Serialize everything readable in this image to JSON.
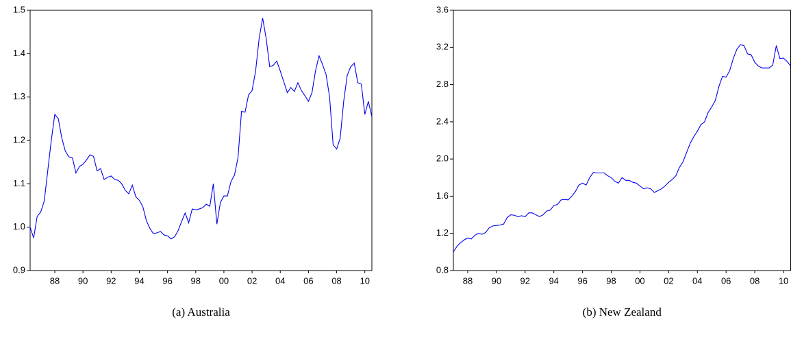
{
  "chart_data": [
    {
      "type": "line",
      "caption": "(a) Australia",
      "x": [
        1986.75,
        1987,
        1987.25,
        1987.5,
        1987.75,
        1988,
        1988.25,
        1988.5,
        1988.75,
        1989,
        1989.25,
        1989.5,
        1989.75,
        1990,
        1990.25,
        1990.5,
        1990.75,
        1991,
        1991.25,
        1991.5,
        1991.75,
        1992,
        1992.25,
        1992.5,
        1992.75,
        1993,
        1993.25,
        1993.5,
        1993.75,
        1994,
        1994.25,
        1994.5,
        1994.75,
        1995,
        1995.25,
        1995.5,
        1995.75,
        1996,
        1996.25,
        1996.5,
        1996.75,
        1997,
        1997.25,
        1997.5,
        1997.75,
        1998,
        1998.25,
        1998.5,
        1998.75,
        1999,
        1999.25,
        1999.5,
        1999.75,
        2000,
        2000.25,
        2000.5,
        2000.75,
        2001,
        2001.25,
        2001.5,
        2001.75,
        2002,
        2002.25,
        2002.5,
        2002.75,
        2003,
        2003.25,
        2003.5,
        2003.75,
        2004,
        2004.25,
        2004.5,
        2004.75,
        2005,
        2005.25,
        2005.5,
        2005.75,
        2006,
        2006.25,
        2006.5,
        2006.75,
        2007,
        2007.25,
        2007.5,
        2007.75,
        2008,
        2008.25,
        2008.5,
        2008.75,
        2009,
        2009.25,
        2009.5,
        2009.75,
        2010,
        2010.25,
        2010.5,
        2010.75,
        2011
      ],
      "series": [
        {
          "color": "#0000ee",
          "values": [
            1.0,
            0.975,
            1.025,
            1.035,
            1.06,
            1.13,
            1.2,
            1.26,
            1.25,
            1.205,
            1.175,
            1.162,
            1.16,
            1.125,
            1.14,
            1.145,
            1.155,
            1.167,
            1.163,
            1.13,
            1.135,
            1.11,
            1.115,
            1.118,
            1.11,
            1.108,
            1.1,
            1.085,
            1.077,
            1.097,
            1.07,
            1.062,
            1.047,
            1.015,
            0.997,
            0.985,
            0.987,
            0.99,
            0.982,
            0.98,
            0.973,
            0.978,
            0.992,
            1.013,
            1.033,
            1.01,
            1.042,
            1.04,
            1.042,
            1.045,
            1.053,
            1.048,
            1.1,
            1.007,
            1.057,
            1.072,
            1.072,
            1.105,
            1.12,
            1.16,
            1.267,
            1.265,
            1.305,
            1.315,
            1.36,
            1.435,
            1.482,
            1.435,
            1.37,
            1.373,
            1.383,
            1.36,
            1.335,
            1.31,
            1.322,
            1.313,
            1.333,
            1.315,
            1.303,
            1.29,
            1.31,
            1.36,
            1.395,
            1.375,
            1.352,
            1.3,
            1.19,
            1.18,
            1.205,
            1.29,
            1.35,
            1.37,
            1.378,
            1.333,
            1.33,
            1.26,
            1.29,
            1.255
          ]
        }
      ],
      "xlim": [
        1986.75,
        2011
      ],
      "xticks": [
        {
          "value": 1988.5,
          "label": "88"
        },
        {
          "value": 1990.5,
          "label": "90"
        },
        {
          "value": 1992.5,
          "label": "92"
        },
        {
          "value": 1994.5,
          "label": "94"
        },
        {
          "value": 1996.5,
          "label": "96"
        },
        {
          "value": 1998.5,
          "label": "98"
        },
        {
          "value": 2000.5,
          "label": "00"
        },
        {
          "value": 2002.5,
          "label": "02"
        },
        {
          "value": 2004.5,
          "label": "04"
        },
        {
          "value": 2006.5,
          "label": "06"
        },
        {
          "value": 2008.5,
          "label": "08"
        },
        {
          "value": 2010.5,
          "label": "10"
        }
      ],
      "ylim": [
        0.9,
        1.5
      ],
      "yticks": [
        0.9,
        {
          "value": 1,
          "label": "1.0"
        },
        1.1,
        1.2,
        1.3,
        1.4,
        1.5
      ]
    },
    {
      "type": "line",
      "caption": "(b) New Zealand",
      "x": [
        1987.5,
        1987.75,
        1988,
        1988.25,
        1988.5,
        1988.75,
        1989,
        1989.25,
        1989.5,
        1989.75,
        1990,
        1990.25,
        1990.5,
        1990.75,
        1991,
        1991.25,
        1991.5,
        1991.75,
        1992,
        1992.25,
        1992.5,
        1992.75,
        1993,
        1993.25,
        1993.5,
        1993.75,
        1994,
        1994.25,
        1994.5,
        1994.75,
        1995,
        1995.25,
        1995.5,
        1995.75,
        1996,
        1996.25,
        1996.5,
        1996.75,
        1997,
        1997.25,
        1997.5,
        1997.75,
        1998,
        1998.25,
        1998.5,
        1998.75,
        1999,
        1999.25,
        1999.5,
        1999.75,
        2000,
        2000.25,
        2000.5,
        2000.75,
        2001,
        2001.25,
        2001.5,
        2001.75,
        2002,
        2002.25,
        2002.5,
        2002.75,
        2003,
        2003.25,
        2003.5,
        2003.75,
        2004,
        2004.25,
        2004.5,
        2004.75,
        2005,
        2005.25,
        2005.5,
        2005.75,
        2006,
        2006.25,
        2006.5,
        2006.75,
        2007,
        2007.25,
        2007.5,
        2007.75,
        2008,
        2008.25,
        2008.5,
        2008.75,
        2009,
        2009.25,
        2009.5,
        2009.75,
        2010,
        2010.25,
        2010.5,
        2010.75,
        2011
      ],
      "series": [
        {
          "color": "#0000ee",
          "values": [
            1.0,
            1.06,
            1.1,
            1.13,
            1.15,
            1.14,
            1.18,
            1.2,
            1.19,
            1.21,
            1.26,
            1.28,
            1.285,
            1.29,
            1.3,
            1.37,
            1.4,
            1.395,
            1.38,
            1.39,
            1.38,
            1.42,
            1.42,
            1.4,
            1.38,
            1.4,
            1.44,
            1.45,
            1.5,
            1.51,
            1.56,
            1.565,
            1.56,
            1.6,
            1.65,
            1.72,
            1.74,
            1.72,
            1.8,
            1.855,
            1.85,
            1.85,
            1.85,
            1.82,
            1.8,
            1.76,
            1.74,
            1.8,
            1.77,
            1.77,
            1.75,
            1.74,
            1.71,
            1.68,
            1.69,
            1.68,
            1.64,
            1.66,
            1.68,
            1.71,
            1.75,
            1.78,
            1.82,
            1.91,
            1.97,
            2.07,
            2.17,
            2.24,
            2.3,
            2.37,
            2.4,
            2.5,
            2.56,
            2.63,
            2.78,
            2.89,
            2.88,
            2.95,
            3.08,
            3.18,
            3.23,
            3.22,
            3.13,
            3.12,
            3.04,
            3.0,
            2.98,
            2.98,
            2.98,
            3.01,
            3.22,
            3.08,
            3.085,
            3.05,
            3.0
          ]
        }
      ],
      "xlim": [
        1987.5,
        2011
      ],
      "xticks": [
        {
          "value": 1988.5,
          "label": "88"
        },
        {
          "value": 1990.5,
          "label": "90"
        },
        {
          "value": 1992.5,
          "label": "92"
        },
        {
          "value": 1994.5,
          "label": "94"
        },
        {
          "value": 1996.5,
          "label": "96"
        },
        {
          "value": 1998.5,
          "label": "98"
        },
        {
          "value": 2000.5,
          "label": "00"
        },
        {
          "value": 2002.5,
          "label": "02"
        },
        {
          "value": 2004.5,
          "label": "04"
        },
        {
          "value": 2006.5,
          "label": "06"
        },
        {
          "value": 2008.5,
          "label": "08"
        },
        {
          "value": 2010.5,
          "label": "10"
        }
      ],
      "ylim": [
        0.8,
        3.6
      ],
      "yticks": [
        0.8,
        1.2,
        1.6,
        {
          "value": 2,
          "label": "2.0"
        },
        2.4,
        2.8,
        3.2,
        3.6
      ]
    }
  ]
}
